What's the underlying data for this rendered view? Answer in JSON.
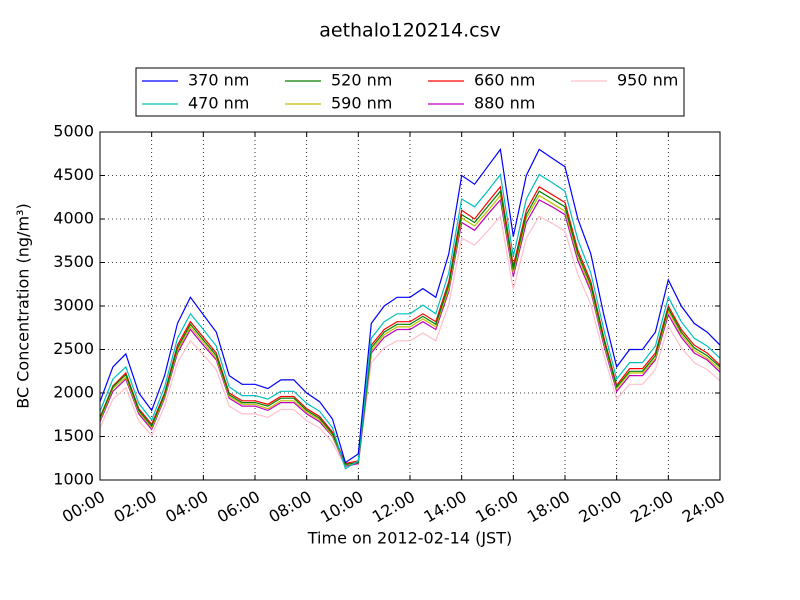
{
  "chart_data": {
    "type": "line",
    "title": "aethalo120214.csv",
    "xlabel": "Time on 2012-02-14 (JST)",
    "ylabel": "BC Concentration (ng/m³)",
    "x": [
      0,
      0.5,
      1,
      1.5,
      2,
      2.5,
      3,
      3.5,
      4,
      4.5,
      5,
      5.5,
      6,
      6.5,
      7,
      7.5,
      8,
      8.5,
      9,
      9.5,
      10,
      10.5,
      11,
      11.5,
      12,
      12.5,
      13,
      13.5,
      14,
      14.5,
      15,
      15.5,
      16,
      16.5,
      17,
      17.5,
      18,
      18.5,
      19,
      19.5,
      20,
      20.5,
      21,
      21.5,
      22,
      22.5,
      23,
      23.5,
      24
    ],
    "xlim": [
      0,
      24
    ],
    "xticks": [
      {
        "value": 0,
        "label": "00:00"
      },
      {
        "value": 2,
        "label": "02:00"
      },
      {
        "value": 4,
        "label": "04:00"
      },
      {
        "value": 6,
        "label": "06:00"
      },
      {
        "value": 8,
        "label": "08:00"
      },
      {
        "value": 10,
        "label": "10:00"
      },
      {
        "value": 12,
        "label": "12:00"
      },
      {
        "value": 14,
        "label": "14:00"
      },
      {
        "value": 16,
        "label": "16:00"
      },
      {
        "value": 18,
        "label": "18:00"
      },
      {
        "value": 20,
        "label": "20:00"
      },
      {
        "value": 22,
        "label": "22:00"
      },
      {
        "value": 24,
        "label": "24:00"
      }
    ],
    "ylim": [
      1000,
      5000
    ],
    "yticks": [
      1000,
      1500,
      2000,
      2500,
      3000,
      3500,
      4000,
      4500,
      5000
    ],
    "grid": true,
    "legend": "top",
    "series": [
      {
        "name": "370 nm",
        "color": "#0000ff",
        "values": [
          1900,
          2300,
          2450,
          2000,
          1800,
          2200,
          2800,
          3100,
          2900,
          2700,
          2200,
          2100,
          2100,
          2050,
          2150,
          2150,
          2000,
          1900,
          1700,
          1200,
          1300,
          2800,
          3000,
          3100,
          3100,
          3200,
          3100,
          3600,
          4500,
          4400,
          4600,
          4800,
          3800,
          4500,
          4800,
          4700,
          4600,
          4000,
          3600,
          2900,
          2300,
          2500,
          2500,
          2700,
          3300,
          3000,
          2800,
          2700,
          2550
        ]
      },
      {
        "name": "470 nm",
        "color": "#00bfbf",
        "values": [
          1790,
          2160,
          2300,
          1880,
          1690,
          2070,
          2630,
          2910,
          2730,
          2540,
          2070,
          1970,
          1970,
          1930,
          2020,
          2020,
          1880,
          1790,
          1600,
          1130,
          1220,
          2630,
          2820,
          2910,
          2910,
          3010,
          2910,
          3380,
          4230,
          4140,
          4320,
          4510,
          3570,
          4230,
          4510,
          4420,
          4320,
          3760,
          3380,
          2730,
          2160,
          2350,
          2350,
          2540,
          3100,
          2820,
          2630,
          2540,
          2400
        ]
      },
      {
        "name": "520 nm",
        "color": "#008000",
        "values": [
          1710,
          2070,
          2210,
          1800,
          1620,
          1980,
          2520,
          2790,
          2610,
          2430,
          1980,
          1890,
          1890,
          1850,
          1940,
          1940,
          1800,
          1710,
          1530,
          1180,
          1200,
          2520,
          2700,
          2790,
          2790,
          2880,
          2790,
          3240,
          4050,
          3960,
          4140,
          4320,
          3420,
          4050,
          4320,
          4230,
          4140,
          3600,
          3240,
          2610,
          2070,
          2250,
          2250,
          2430,
          2970,
          2700,
          2520,
          2430,
          2300
        ]
      },
      {
        "name": "590 nm",
        "color": "#bfbf00",
        "values": [
          1690,
          2050,
          2180,
          1780,
          1600,
          1960,
          2490,
          2760,
          2580,
          2400,
          1960,
          1870,
          1870,
          1820,
          1910,
          1910,
          1780,
          1690,
          1510,
          1170,
          1200,
          2490,
          2670,
          2760,
          2760,
          2850,
          2760,
          3200,
          4010,
          3920,
          4090,
          4270,
          3380,
          4010,
          4270,
          4180,
          4090,
          3560,
          3200,
          2580,
          2050,
          2230,
          2230,
          2400,
          2940,
          2670,
          2490,
          2400,
          2270
        ]
      },
      {
        "name": "660 nm",
        "color": "#ff0000",
        "values": [
          1720,
          2080,
          2230,
          1820,
          1640,
          2000,
          2550,
          2820,
          2640,
          2460,
          2000,
          1910,
          1910,
          1870,
          1960,
          1960,
          1820,
          1730,
          1550,
          1190,
          1220,
          2550,
          2730,
          2820,
          2820,
          2910,
          2820,
          3280,
          4100,
          4000,
          4190,
          4370,
          3460,
          4100,
          4370,
          4280,
          4190,
          3640,
          3280,
          2640,
          2090,
          2280,
          2280,
          2460,
          3000,
          2730,
          2550,
          2460,
          2320
        ]
      },
      {
        "name": "880 nm",
        "color": "#bf00bf",
        "values": [
          1670,
          2020,
          2160,
          1760,
          1580,
          1940,
          2460,
          2730,
          2550,
          2380,
          1940,
          1850,
          1850,
          1800,
          1890,
          1890,
          1760,
          1670,
          1500,
          1160,
          1190,
          2460,
          2640,
          2730,
          2730,
          2820,
          2730,
          3170,
          3960,
          3870,
          4050,
          4220,
          3340,
          3960,
          4220,
          4140,
          4050,
          3520,
          3170,
          2550,
          2020,
          2200,
          2200,
          2380,
          2900,
          2640,
          2460,
          2380,
          2240
        ]
      },
      {
        "name": "950 nm",
        "color": "#ffc0cb",
        "values": [
          1600,
          1930,
          2060,
          1680,
          1510,
          1850,
          2350,
          2600,
          2440,
          2270,
          1850,
          1760,
          1760,
          1720,
          1810,
          1810,
          1680,
          1600,
          1430,
          1150,
          1180,
          2350,
          2520,
          2600,
          2600,
          2690,
          2600,
          3020,
          3780,
          3700,
          3860,
          4030,
          3190,
          3780,
          4030,
          3950,
          3860,
          3360,
          3020,
          2440,
          1930,
          2100,
          2100,
          2270,
          2770,
          2520,
          2350,
          2270,
          2140
        ]
      }
    ]
  }
}
